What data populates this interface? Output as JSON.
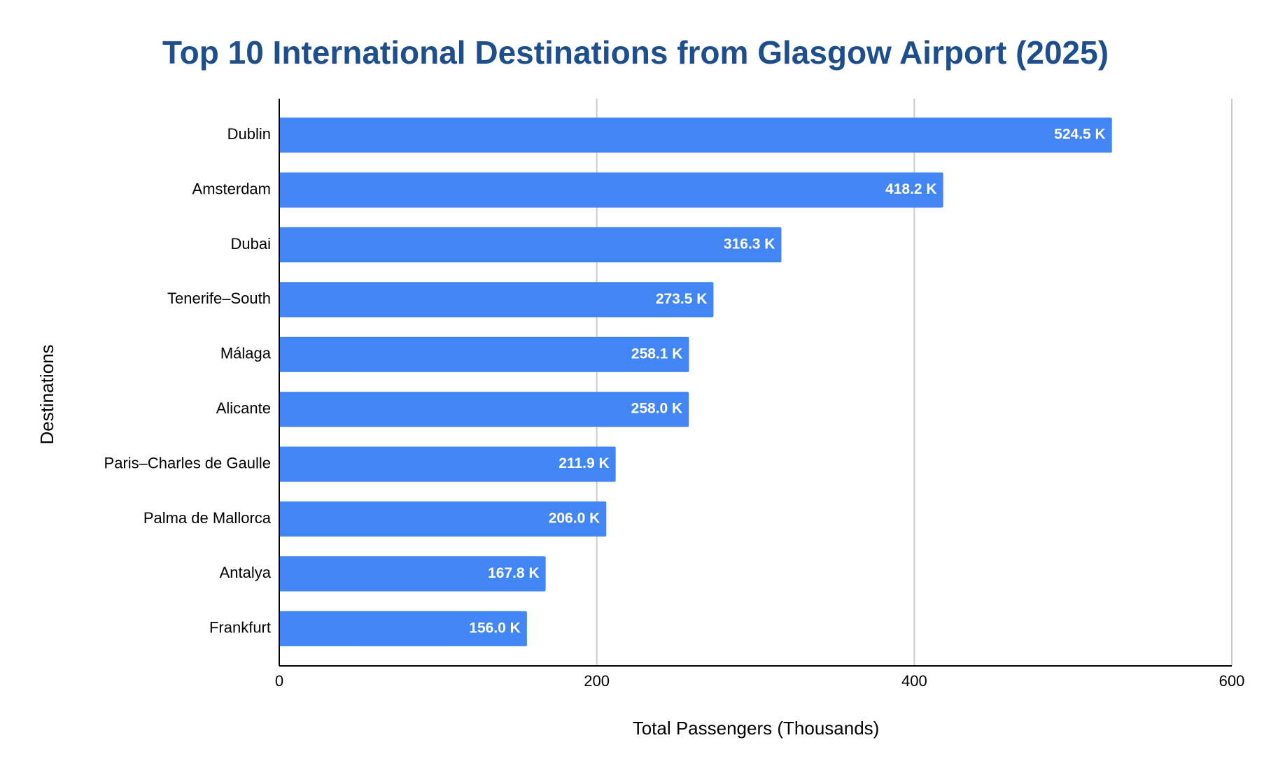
{
  "chart_data": {
    "type": "bar",
    "orientation": "horizontal",
    "title": "Top 10 International Destinations from Glasgow Airport (2025)",
    "x_label": "Total Passengers (Thousands)",
    "y_label": "Destinations",
    "categories": [
      "Dublin",
      "Amsterdam",
      "Dubai",
      "Tenerife–South",
      "Málaga",
      "Alicante",
      "Paris–Charles de Gaulle",
      "Palma de Mallorca",
      "Antalya",
      "Frankfurt"
    ],
    "values": [
      524.5,
      418.2,
      316.3,
      273.5,
      258.1,
      258.0,
      211.9,
      206.0,
      167.8,
      156.0
    ],
    "value_labels": [
      "524.5 K",
      "418.2 K",
      "316.3 K",
      "273.5 K",
      "258.1 K",
      "258.0 K",
      "211.9 K",
      "206.0 K",
      "167.8 K",
      "156.0 K"
    ],
    "color": "#4285f4",
    "xlim": [
      0,
      600
    ],
    "xticks": [
      0,
      200,
      400,
      600
    ],
    "grid": true
  }
}
